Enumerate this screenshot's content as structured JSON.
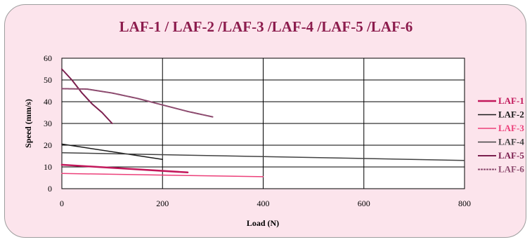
{
  "chart_data": {
    "type": "line",
    "title": "LAF-1 / LAF-2 /LAF-3 /LAF-4 /LAF-5 /LAF-6",
    "xlabel": "Load (N)",
    "ylabel": "Speed (mm/s)",
    "xlim": [
      0,
      800
    ],
    "ylim": [
      0,
      60
    ],
    "xticks": [
      "0",
      "200",
      "400",
      "600",
      "800"
    ],
    "yticks": [
      "0",
      "10",
      "20",
      "30",
      "40",
      "50",
      "60"
    ],
    "grid": true,
    "legend_position": "right",
    "series": [
      {
        "name": "LAF-1",
        "color": "#c2185b",
        "dash": "none",
        "width": 2.5,
        "x": [
          0,
          250
        ],
        "y": [
          11,
          7.5
        ]
      },
      {
        "name": "LAF-2",
        "color": "#1a1a1a",
        "dash": "none",
        "width": 1.5,
        "x": [
          0,
          200
        ],
        "y": [
          20.5,
          13.5
        ]
      },
      {
        "name": "LAF-3",
        "color": "#ec407a",
        "dash": "none",
        "width": 1.5,
        "x": [
          0,
          400
        ],
        "y": [
          7,
          5.5
        ]
      },
      {
        "name": "LAF-4",
        "color": "#424242",
        "dash": "none",
        "width": 1.5,
        "x": [
          0,
          800
        ],
        "y": [
          16.5,
          13
        ]
      },
      {
        "name": "LAF-5",
        "color": "#7b1f4e",
        "dash": "none",
        "width": 2,
        "x": [
          0,
          20,
          40,
          60,
          80,
          100
        ],
        "y": [
          55,
          50,
          44,
          39,
          35,
          30
        ]
      },
      {
        "name": "LAF-6",
        "color": "#8c4a6e",
        "dash": "3,1",
        "width": 2,
        "x": [
          0,
          50,
          100,
          150,
          200,
          250,
          300
        ],
        "y": [
          46,
          45.8,
          44,
          41.5,
          38.5,
          35.5,
          33
        ]
      }
    ]
  }
}
